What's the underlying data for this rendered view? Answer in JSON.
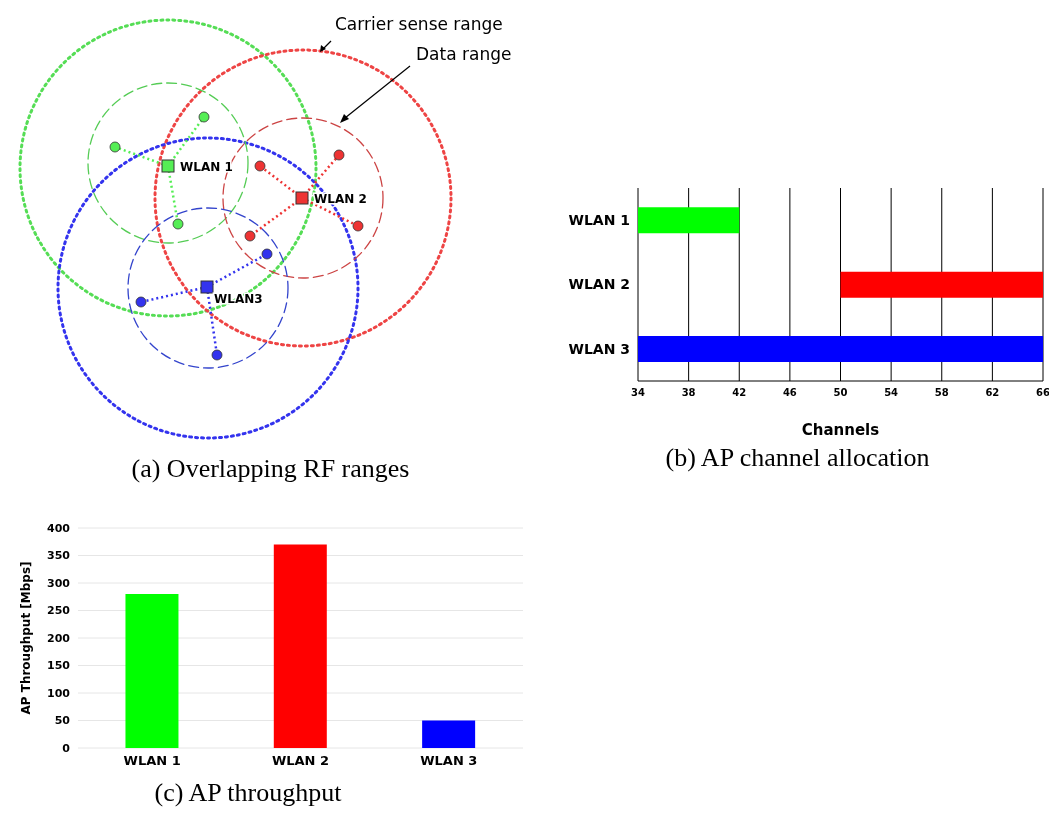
{
  "chart_data": [
    {
      "type": "other",
      "title": "(a) Overlapping RF ranges",
      "annotations": [
        "Carrier sense range",
        "Data range",
        "WLAN 1",
        "WLAN 2",
        "WLAN3"
      ]
    },
    {
      "type": "bar",
      "orientation": "horizontal",
      "title": "(b) AP channel allocation",
      "xlabel": "Channels",
      "categories": [
        "WLAN 1",
        "WLAN 2",
        "WLAN 3"
      ],
      "base": [
        34,
        50,
        34
      ],
      "values": [
        8,
        16,
        32
      ],
      "colors": [
        "#00ff00",
        "#ff0000",
        "#0000ff"
      ],
      "xlim": [
        34,
        66
      ],
      "xticks": [
        34,
        38,
        42,
        46,
        50,
        54,
        58,
        62,
        66
      ],
      "grid": "x"
    },
    {
      "type": "bar",
      "title": "(c) AP throughput",
      "ylabel": "AP Throughput [Mbps]",
      "categories": [
        "WLAN 1",
        "WLAN 2",
        "WLAN 3"
      ],
      "values": [
        280,
        370,
        50
      ],
      "colors": [
        "#00ff00",
        "#ff0000",
        "#0000ff"
      ],
      "ylim": [
        0,
        400
      ],
      "yticks": [
        0,
        50,
        100,
        150,
        200,
        250,
        300,
        350,
        400
      ],
      "grid": "y"
    }
  ]
}
